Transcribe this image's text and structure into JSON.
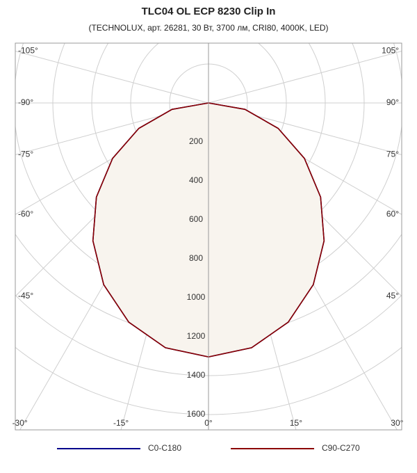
{
  "chart_data": {
    "type": "polar",
    "title": "TLC04 OL ECP 8230 Clip In",
    "subtitle": "(TECHNOLUX, арт. 26281, 30 Вт, 3700 лм, CRI80, 4000K, LED)",
    "angles": [
      0,
      10,
      20,
      30,
      40,
      50,
      60,
      70,
      80,
      90
    ],
    "series": [
      {
        "name": "C0-C180",
        "color": "#00008b",
        "values": [
          1304,
          1276,
          1198,
          1077,
          924,
          752,
          569,
          381,
          190,
          0
        ]
      },
      {
        "name": "C90-C270",
        "color": "#8b0000",
        "values": [
          1304,
          1276,
          1198,
          1077,
          924,
          752,
          569,
          381,
          190,
          0
        ]
      }
    ],
    "fill": "#f8f4ee",
    "rlim": [
      0,
      1600
    ],
    "rticks": [
      200,
      400,
      600,
      800,
      1000,
      1200,
      1400,
      1600
    ],
    "angleticks": [
      {
        "value": -105,
        "label": "-105°"
      },
      {
        "value": -90,
        "label": "-90°"
      },
      {
        "value": -75,
        "label": "-75°"
      },
      {
        "value": -60,
        "label": "-60°"
      },
      {
        "value": -45,
        "label": "-45°"
      },
      {
        "value": -30,
        "label": "-30°"
      },
      {
        "value": -15,
        "label": "-15°"
      },
      {
        "value": 0,
        "label": "0°"
      },
      {
        "value": 15,
        "label": "15°"
      },
      {
        "value": 30,
        "label": "30°"
      },
      {
        "value": 45,
        "label": "45°"
      },
      {
        "value": 60,
        "label": "60°"
      },
      {
        "value": 75,
        "label": "75°"
      },
      {
        "value": 90,
        "label": "90°"
      },
      {
        "value": 105,
        "label": "105°"
      }
    ]
  }
}
